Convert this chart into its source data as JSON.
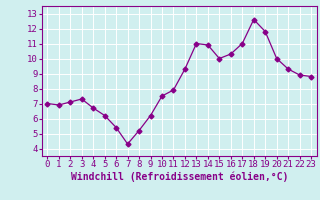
{
  "x": [
    0,
    1,
    2,
    3,
    4,
    5,
    6,
    7,
    8,
    9,
    10,
    11,
    12,
    13,
    14,
    15,
    16,
    17,
    18,
    19,
    20,
    21,
    22,
    23
  ],
  "y": [
    7.0,
    6.9,
    7.1,
    7.3,
    6.7,
    6.2,
    5.4,
    4.3,
    5.2,
    6.2,
    7.5,
    7.9,
    9.3,
    11.0,
    10.9,
    10.0,
    10.3,
    11.0,
    12.6,
    11.8,
    10.0,
    9.3,
    8.9,
    8.8
  ],
  "line_color": "#880088",
  "marker": "D",
  "marker_size": 2.5,
  "bg_color": "#d0efef",
  "grid_color": "#ffffff",
  "xlabel": "Windchill (Refroidissement éolien,°C)",
  "xlabel_fontsize": 7,
  "tick_fontsize": 6.5,
  "ylim": [
    3.5,
    13.5
  ],
  "xlim": [
    -0.5,
    23.5
  ],
  "yticks": [
    4,
    5,
    6,
    7,
    8,
    9,
    10,
    11,
    12,
    13
  ],
  "xticks": [
    0,
    1,
    2,
    3,
    4,
    5,
    6,
    7,
    8,
    9,
    10,
    11,
    12,
    13,
    14,
    15,
    16,
    17,
    18,
    19,
    20,
    21,
    22,
    23
  ]
}
